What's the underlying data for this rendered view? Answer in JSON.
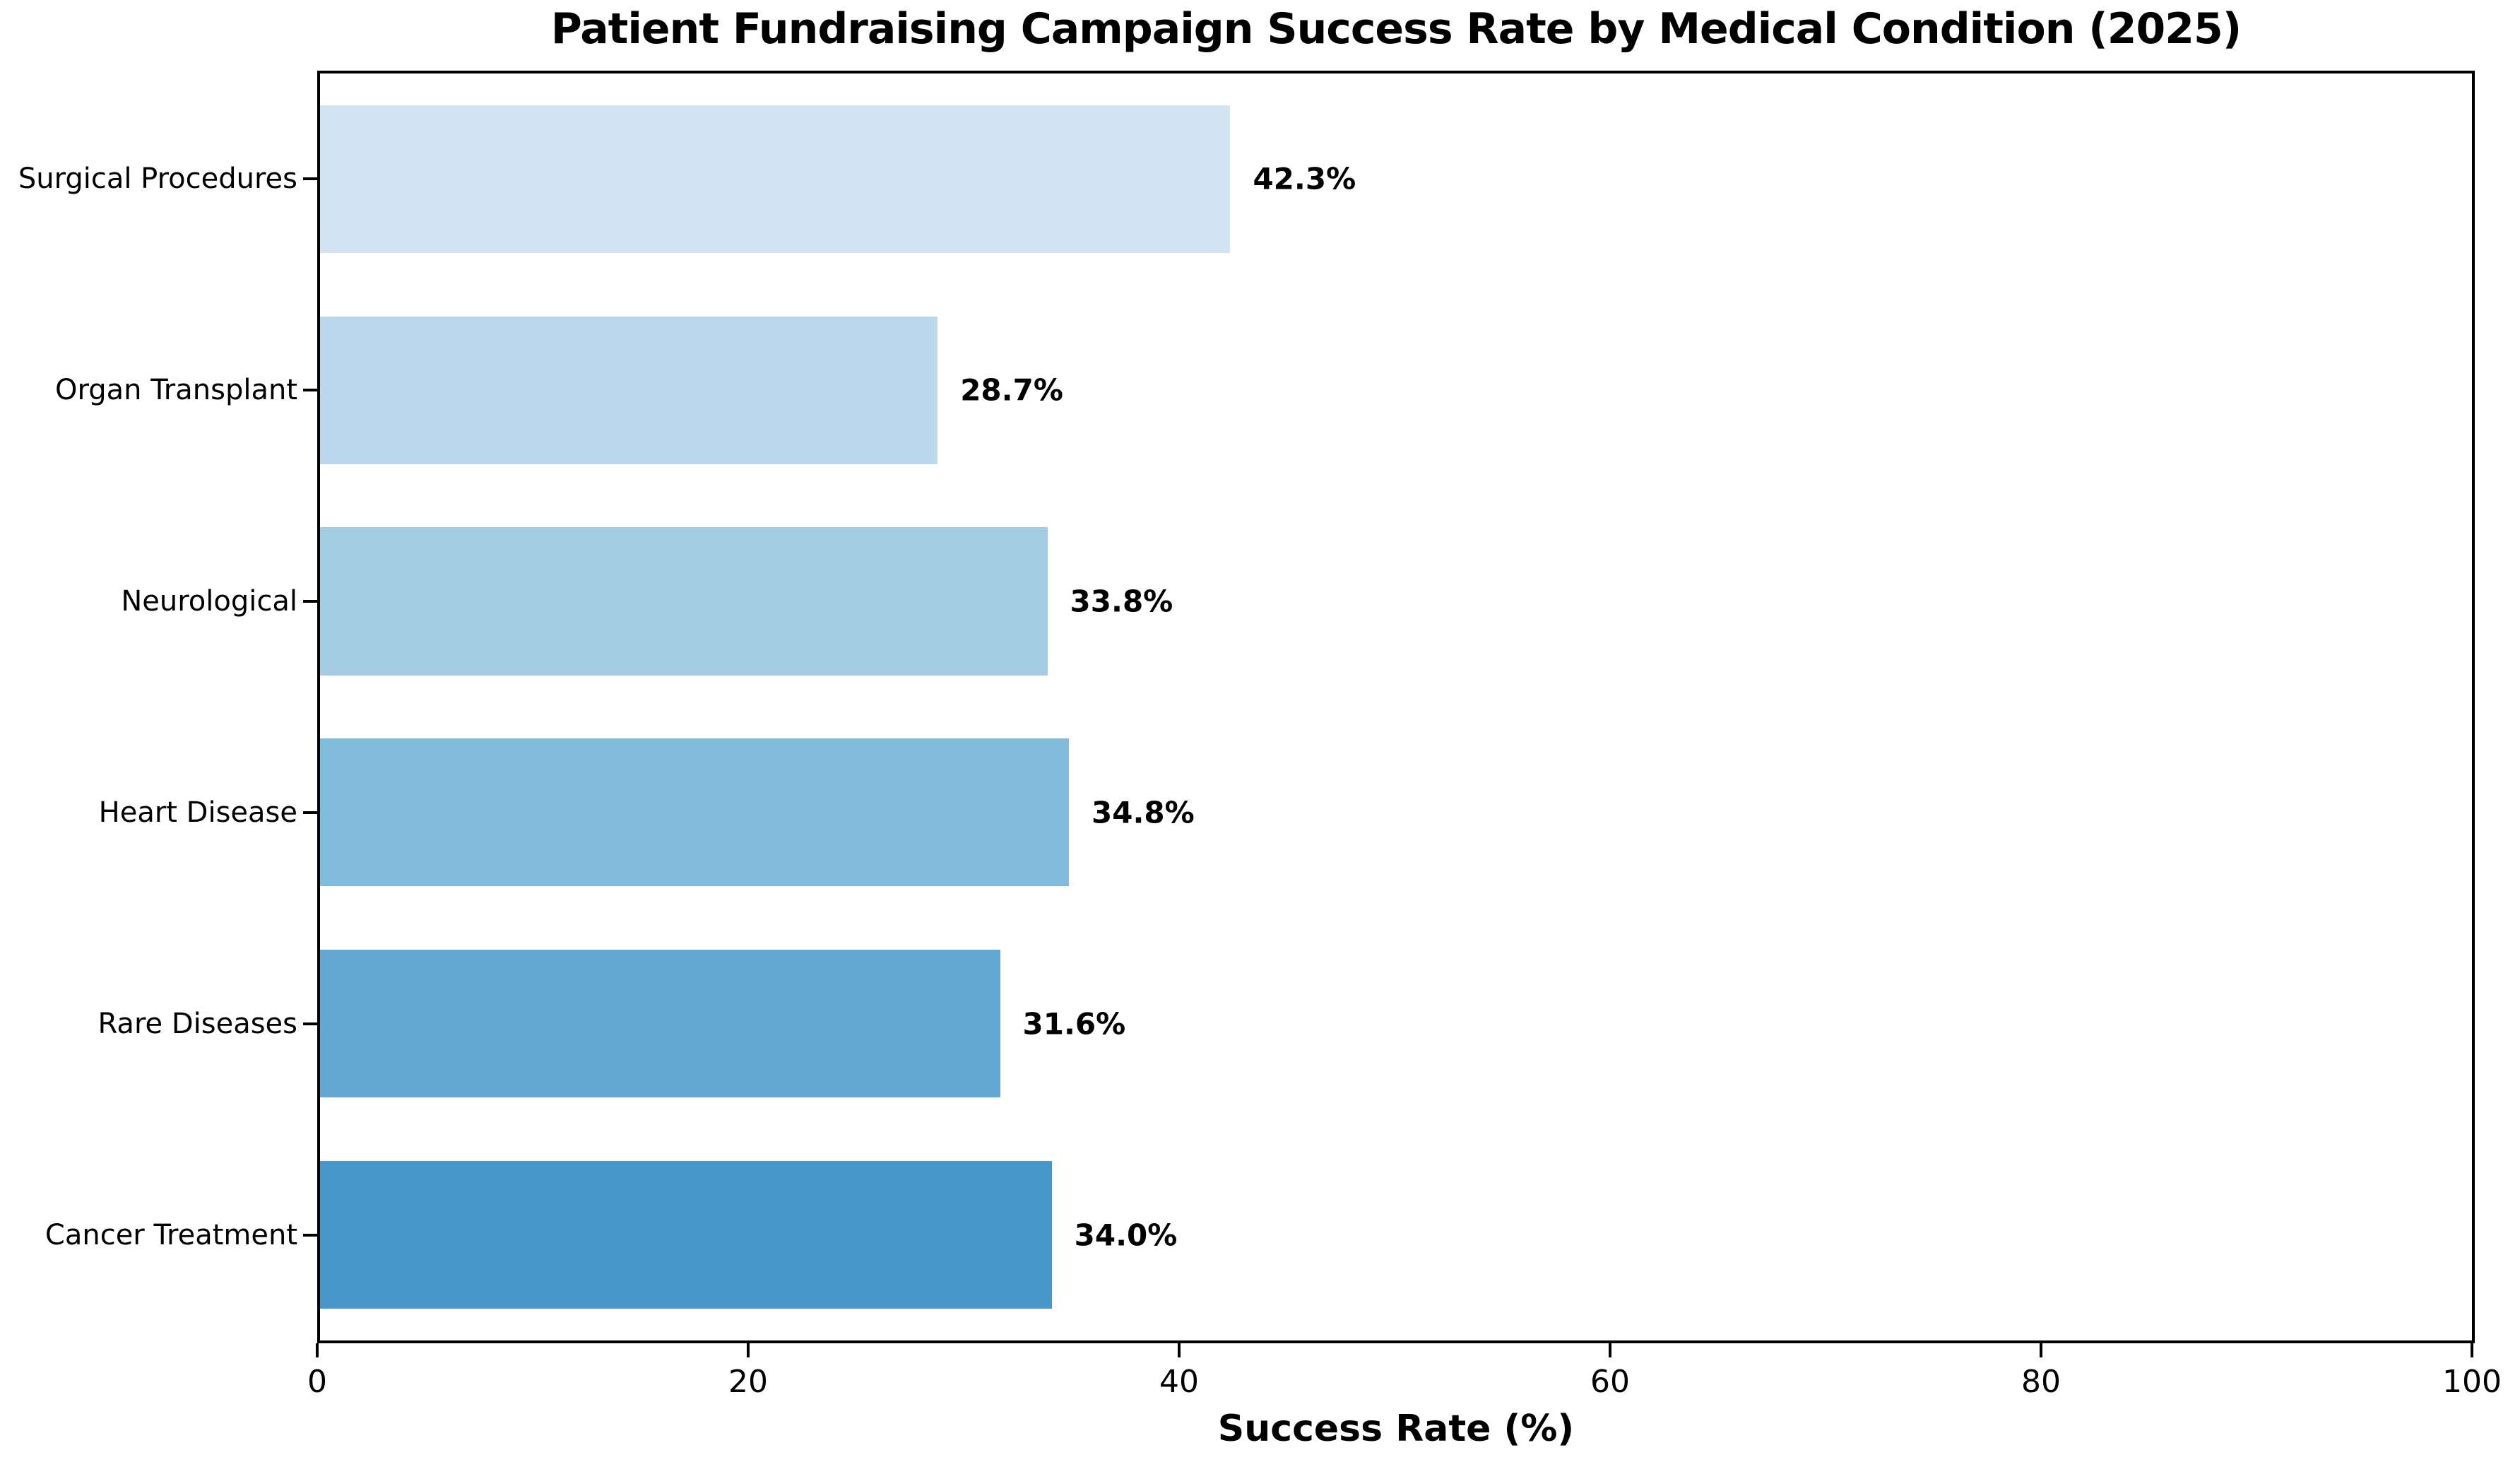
{
  "figure": {
    "background_color": "#ffffff",
    "axis_color": "#000000",
    "text_color": "#000000"
  },
  "chart_data": {
    "type": "bar",
    "orientation": "horizontal",
    "title": "Patient Fundraising Campaign Success Rate by Medical Condition (2025)",
    "xlabel": "Success Rate (%)",
    "ylabel": "",
    "bar_order": "top_to_bottom",
    "categories": [
      "Surgical Procedures",
      "Organ Transplant",
      "Neurological",
      "Heart Disease",
      "Rare Diseases",
      "Cancer Treatment"
    ],
    "values": [
      42.3,
      28.7,
      33.8,
      34.8,
      31.6,
      34.0
    ],
    "value_labels": [
      "42.3%",
      "28.7%",
      "33.8%",
      "34.8%",
      "31.6%",
      "34.0%"
    ],
    "bar_colors": [
      "#d2e3f1",
      "#bcd8ec",
      "#a3cce3",
      "#82bcdc",
      "#62a8d3",
      "#4997ca"
    ],
    "xlim": [
      0,
      100
    ],
    "xticks": [
      0,
      20,
      40,
      60,
      80,
      100
    ],
    "xtick_labels": [
      "0",
      "20",
      "40",
      "60",
      "80",
      "100"
    ],
    "grid": false,
    "legend": null,
    "plot_border": "full-box"
  }
}
